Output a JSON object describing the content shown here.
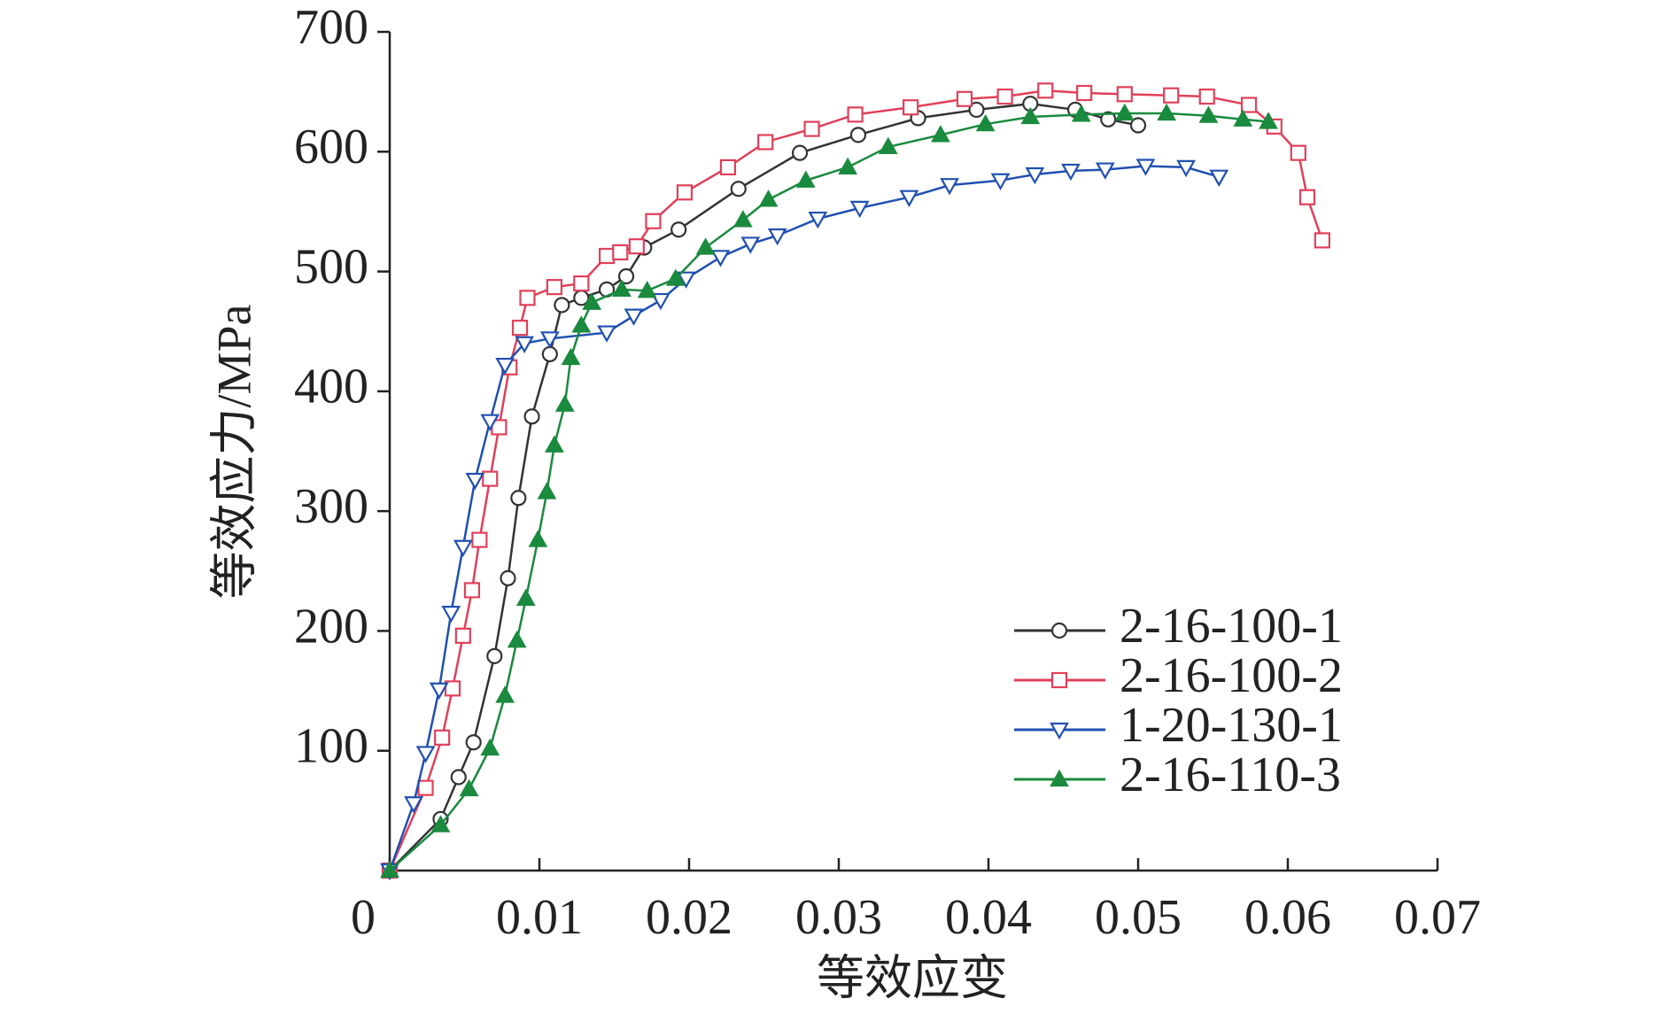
{
  "chart_data": {
    "type": "line",
    "xlabel": "等效应变",
    "ylabel": "等效应力/MPa",
    "xlim": [
      0,
      0.07
    ],
    "ylim": [
      0,
      700
    ],
    "xticks": [
      0,
      0.01,
      0.02,
      0.03,
      0.04,
      0.05,
      0.06,
      0.07
    ],
    "yticks": [
      100,
      200,
      300,
      400,
      500,
      600,
      700
    ],
    "legend": "lower right",
    "series": [
      {
        "name": "2-16-100-1",
        "color": "#333333",
        "marker": "circle",
        "marker_filled": false,
        "x": [
          0,
          0.0034,
          0.0046,
          0.0056,
          0.007,
          0.0079,
          0.0086,
          0.0095,
          0.0107,
          0.0115,
          0.0128,
          0.0145,
          0.0158,
          0.017,
          0.0193,
          0.0233,
          0.0274,
          0.0313,
          0.0353,
          0.0392,
          0.0428,
          0.0458,
          0.048,
          0.05
        ],
        "values": [
          0,
          43,
          78,
          107,
          179,
          244,
          311,
          379,
          431,
          472,
          478,
          485,
          496,
          520,
          535,
          569,
          599,
          614,
          628,
          635,
          640,
          635,
          627,
          622
        ]
      },
      {
        "name": "2-16-100-2",
        "color": "#e0405a",
        "marker": "square",
        "marker_filled": false,
        "x": [
          0,
          0.0024,
          0.0035,
          0.0042,
          0.0049,
          0.0055,
          0.006,
          0.0067,
          0.0073,
          0.008,
          0.0087,
          0.0092,
          0.011,
          0.0128,
          0.0145,
          0.0154,
          0.0165,
          0.0176,
          0.0197,
          0.0226,
          0.0251,
          0.0282,
          0.0311,
          0.0348,
          0.0384,
          0.0411,
          0.0438,
          0.0464,
          0.0491,
          0.0522,
          0.0546,
          0.0574,
          0.0591,
          0.0607,
          0.0613,
          0.0623
        ],
        "values": [
          0,
          69,
          111,
          152,
          196,
          234,
          276,
          327,
          370,
          420,
          453,
          478,
          487,
          490,
          513,
          516,
          521,
          542,
          566,
          587,
          608,
          619,
          631,
          637,
          644,
          646,
          651,
          649,
          648,
          647,
          646,
          639,
          621,
          599,
          562,
          526
        ]
      },
      {
        "name": "1-20-130-1",
        "color": "#2050b0",
        "marker": "triangle-down",
        "marker_filled": false,
        "x": [
          0,
          0.0016,
          0.0024,
          0.0033,
          0.0041,
          0.0049,
          0.0057,
          0.0067,
          0.0077,
          0.009,
          0.0107,
          0.0145,
          0.0163,
          0.0181,
          0.0198,
          0.0221,
          0.0241,
          0.0259,
          0.0286,
          0.0314,
          0.0347,
          0.0374,
          0.0408,
          0.0431,
          0.0455,
          0.0478,
          0.0505,
          0.0532,
          0.0554
        ],
        "values": [
          0,
          56,
          98,
          151,
          215,
          270,
          326,
          375,
          422,
          440,
          444,
          449,
          463,
          476,
          494,
          512,
          523,
          530,
          544,
          553,
          562,
          572,
          576,
          581,
          584,
          585,
          588,
          587,
          579
        ]
      },
      {
        "name": "2-16-110-3",
        "color": "#1a8a3e",
        "marker": "triangle-up",
        "marker_filled": true,
        "x": [
          0,
          0.0034,
          0.0053,
          0.0067,
          0.0077,
          0.0085,
          0.0091,
          0.0099,
          0.0105,
          0.011,
          0.0117,
          0.0121,
          0.0128,
          0.0135,
          0.0155,
          0.0172,
          0.0191,
          0.0211,
          0.0236,
          0.0253,
          0.0278,
          0.0306,
          0.0333,
          0.0368,
          0.0398,
          0.0428,
          0.0462,
          0.0491,
          0.0519,
          0.0547,
          0.057,
          0.0587
        ],
        "values": [
          0,
          38,
          68,
          102,
          146,
          192,
          227,
          276,
          316,
          355,
          389,
          428,
          455,
          474,
          485,
          484,
          494,
          520,
          543,
          560,
          576,
          587,
          604,
          614,
          623,
          629,
          631,
          632,
          632,
          630,
          627,
          625
        ]
      }
    ]
  }
}
